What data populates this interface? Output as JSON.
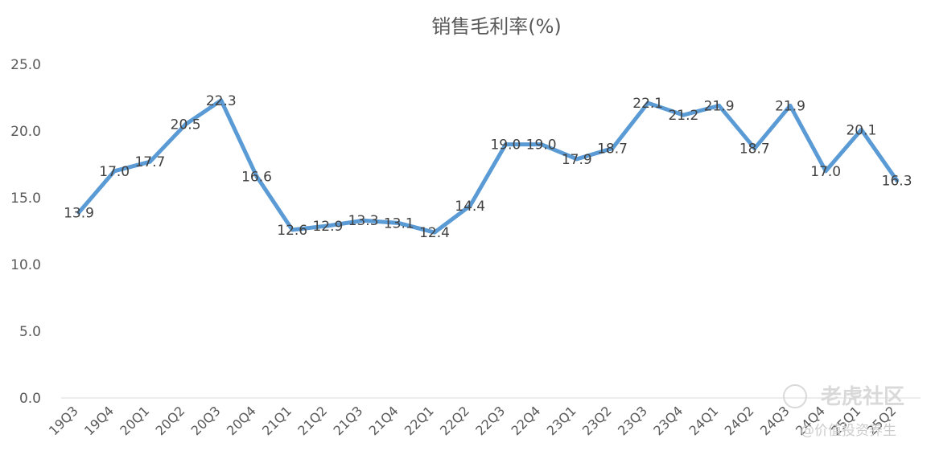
{
  "chart_data": {
    "type": "line",
    "title": "销售毛利率(%)",
    "xlabel": "",
    "ylabel": "",
    "ylim": [
      0,
      25
    ],
    "yticks": [
      "0.0",
      "5.0",
      "10.0",
      "15.0",
      "20.0",
      "25.0"
    ],
    "grid": false,
    "legend": "none",
    "categories": [
      "19Q3",
      "19Q4",
      "20Q1",
      "20Q2",
      "20Q3",
      "20Q4",
      "21Q1",
      "21Q2",
      "21Q3",
      "21Q4",
      "22Q1",
      "22Q2",
      "22Q3",
      "22Q4",
      "23Q1",
      "23Q2",
      "23Q3",
      "23Q4",
      "24Q1",
      "24Q2",
      "24Q3",
      "24Q4",
      "25Q1",
      "25Q2"
    ],
    "series": [
      {
        "values": [
          13.9,
          17.0,
          17.7,
          20.5,
          22.3,
          16.6,
          12.6,
          12.9,
          13.3,
          13.1,
          12.4,
          14.4,
          19.0,
          19.0,
          17.9,
          18.7,
          22.1,
          21.2,
          21.9,
          18.7,
          21.9,
          17.0,
          20.1,
          16.3
        ],
        "labels": [
          "13.9",
          "17.0",
          "17.7",
          "20.5",
          "22.3",
          "16.6",
          "12.6",
          "12.9",
          "13.3",
          "13.1",
          "12.4",
          "14.4",
          "19.0",
          "19.0",
          "17.9",
          "18.7",
          "22.1",
          "21.2",
          "21.9",
          "18.7",
          "21.9",
          "17.0",
          "20.1",
          "16.3"
        ],
        "color": "#5b9bd5"
      }
    ],
    "watermark": {
      "text": "老虎社区",
      "subtext": "@价值投资养生"
    }
  }
}
